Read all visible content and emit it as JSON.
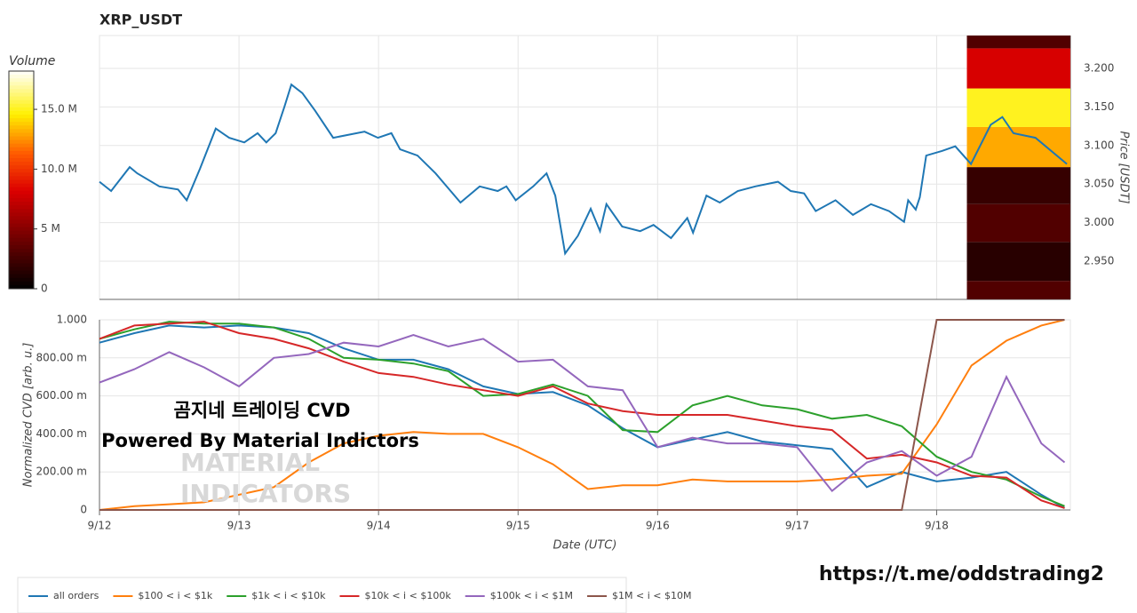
{
  "chart_data": [
    {
      "type": "line",
      "title": "XRP_USDT",
      "ylabel": "Price [USDT]",
      "yaxis_side": "right",
      "color": "#1f77b4",
      "x": [
        0,
        2,
        5.2,
        6.5,
        10.3,
        13.5,
        15,
        17.3,
        20,
        22.3,
        24.9,
        27.2,
        28.7,
        30.3,
        31.8,
        33,
        34.9,
        37.1,
        40.2,
        45.6,
        47.9,
        50.2,
        51.7,
        54.7,
        57.8,
        62.1,
        65.4,
        68.5,
        70,
        71.6,
        74.6,
        76.9,
        78.4,
        80.1,
        82.3,
        84.5,
        86.1,
        87.2,
        89.9,
        93,
        95.3,
        98.3,
        101.1,
        102.1,
        104.4,
        106.7,
        109.8,
        112.8,
        116.7,
        118.9,
        121.2,
        123.2,
        126.6,
        129.6,
        132.7,
        135.8,
        138.4,
        139.1,
        140.4,
        141.1,
        142.2,
        144.9,
        147.2,
        149.9,
        153.3,
        155.3,
        157.2,
        161,
        166.4
      ],
      "values": [
        3.053,
        3.041,
        3.072,
        3.064,
        3.047,
        3.043,
        3.029,
        3.07,
        3.122,
        3.11,
        3.104,
        3.116,
        3.104,
        3.116,
        3.15,
        3.179,
        3.168,
        3.145,
        3.11,
        3.118,
        3.11,
        3.116,
        3.095,
        3.087,
        3.064,
        3.026,
        3.047,
        3.041,
        3.047,
        3.029,
        3.047,
        3.064,
        3.035,
        2.96,
        2.983,
        3.018,
        2.989,
        3.024,
        2.995,
        2.989,
        2.997,
        2.98,
        3.006,
        2.987,
        3.035,
        3.026,
        3.041,
        3.047,
        3.053,
        3.041,
        3.038,
        3.015,
        3.029,
        3.01,
        3.024,
        3.015,
        3.001,
        3.029,
        3.017,
        3.033,
        3.087,
        3.093,
        3.099,
        3.076,
        3.127,
        3.137,
        3.116,
        3.11,
        3.076
      ],
      "xlim": [
        0,
        167
      ],
      "xticks": [
        0,
        24,
        48,
        72,
        96,
        120,
        144
      ],
      "ylim": [
        2.9005,
        3.2426
      ],
      "yticks": [
        {
          "value": 2.95,
          "label": "2.950"
        },
        {
          "value": 3.0,
          "label": "3.000"
        },
        {
          "value": 3.05,
          "label": "3.050"
        },
        {
          "value": 3.1,
          "label": "3.100"
        },
        {
          "value": 3.15,
          "label": "3.150"
        },
        {
          "value": 3.2,
          "label": "3.200"
        }
      ],
      "grid": true,
      "heatmap": {
        "xrange": [
          149.2,
          167
        ],
        "bins": [
          2.9005,
          2.9245,
          2.975,
          3.024,
          3.072,
          3.124,
          3.174,
          3.226,
          3.2426
        ],
        "values": [
          3000000,
          1500000,
          3000000,
          2000000,
          13000000,
          15000000,
          8000000,
          3000000
        ]
      },
      "colorbar": {
        "label": "Volume",
        "lim": [
          0,
          18200000
        ],
        "ticks": [
          0,
          {
            "value": 5000000,
            "label": "5 M"
          },
          {
            "value": 10000000,
            "label": "10.0 M"
          },
          {
            "value": 15000000,
            "label": "15.0 M"
          }
        ]
      }
    },
    {
      "type": "line",
      "xlabel": "Date (UTC)",
      "ylabel": "Normalized CVD [arb. u.]",
      "x": [
        0,
        6,
        12,
        18,
        24,
        30,
        36,
        42,
        48,
        54,
        60,
        66,
        72,
        78,
        84,
        90,
        96,
        102,
        108,
        114,
        120,
        126,
        132,
        138,
        144,
        150,
        156,
        162,
        166
      ],
      "xlim": [
        0,
        167
      ],
      "xticks": [
        {
          "value": 0,
          "label": "9/12"
        },
        {
          "value": 24,
          "label": "9/13"
        },
        {
          "value": 48,
          "label": "9/14"
        },
        {
          "value": 72,
          "label": "9/15"
        },
        {
          "value": 96,
          "label": "9/16"
        },
        {
          "value": 120,
          "label": "9/17"
        },
        {
          "value": 144,
          "label": "9/18"
        }
      ],
      "ylim": [
        0,
        1
      ],
      "yticks": [
        0,
        {
          "value": 0.2,
          "label": "200.00 m"
        },
        {
          "value": 0.4,
          "label": "400.00 m"
        },
        {
          "value": 0.6,
          "label": "600.00 m"
        },
        {
          "value": 0.8,
          "label": "800.00 m"
        },
        {
          "value": 1,
          "label": "1.000"
        }
      ],
      "grid": true,
      "series": [
        {
          "name": "all orders",
          "color": "#1f77b4",
          "values": [
            0.88,
            0.93,
            0.97,
            0.96,
            0.97,
            0.96,
            0.93,
            0.85,
            0.79,
            0.79,
            0.74,
            0.65,
            0.61,
            0.62,
            0.55,
            0.43,
            0.33,
            0.37,
            0.41,
            0.36,
            0.34,
            0.32,
            0.12,
            0.2,
            0.15,
            0.17,
            0.2,
            0.08,
            0.01
          ]
        },
        {
          "name": "$100 < i < $1k",
          "color": "#ff7f0e",
          "values": [
            0,
            0.02,
            0.03,
            0.04,
            0.08,
            0.12,
            0.25,
            0.35,
            0.39,
            0.41,
            0.4,
            0.4,
            0.33,
            0.24,
            0.11,
            0.13,
            0.13,
            0.16,
            0.15,
            0.15,
            0.15,
            0.16,
            0.18,
            0.19,
            0.45,
            0.76,
            0.89,
            0.97,
            1.0
          ]
        },
        {
          "name": "$1k < i < $10k",
          "color": "#2ca02c",
          "values": [
            0.9,
            0.95,
            0.99,
            0.98,
            0.98,
            0.96,
            0.9,
            0.8,
            0.79,
            0.77,
            0.73,
            0.6,
            0.61,
            0.66,
            0.6,
            0.42,
            0.41,
            0.55,
            0.6,
            0.55,
            0.53,
            0.48,
            0.5,
            0.44,
            0.28,
            0.2,
            0.16,
            0.07,
            0.02
          ]
        },
        {
          "name": "$10k < i < $100k",
          "color": "#d62728",
          "values": [
            0.9,
            0.97,
            0.98,
            0.99,
            0.93,
            0.9,
            0.85,
            0.78,
            0.72,
            0.7,
            0.66,
            0.63,
            0.6,
            0.65,
            0.56,
            0.52,
            0.5,
            0.5,
            0.5,
            0.47,
            0.44,
            0.42,
            0.27,
            0.29,
            0.25,
            0.18,
            0.17,
            0.05,
            0.01
          ]
        },
        {
          "name": "$100k < i < $1M",
          "color": "#9467bd",
          "values": [
            0.67,
            0.74,
            0.83,
            0.75,
            0.65,
            0.8,
            0.82,
            0.88,
            0.86,
            0.92,
            0.86,
            0.9,
            0.78,
            0.79,
            0.65,
            0.63,
            0.33,
            0.38,
            0.35,
            0.35,
            0.33,
            0.1,
            0.25,
            0.31,
            0.18,
            0.28,
            0.7,
            0.35,
            0.25
          ]
        },
        {
          "name": "$1M < i < $10M",
          "color": "#8c564b",
          "values": [
            0,
            0,
            0,
            0,
            0,
            0,
            0,
            0,
            0,
            0,
            0,
            0,
            0,
            0,
            0,
            0,
            0,
            0,
            0,
            0,
            0,
            0,
            0,
            0,
            1,
            1,
            1,
            1,
            1
          ]
        }
      ],
      "legend": "bottom-left",
      "annotations": [
        "곰지네 트레이딩 CVD",
        "Powered By Material Indictors",
        "MATERIAL",
        "INDICATORS"
      ]
    }
  ],
  "footer": "https://t.me/oddstrading2"
}
